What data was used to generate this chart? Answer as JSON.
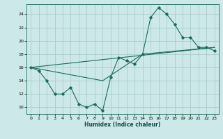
{
  "title": "",
  "xlabel": "Humidex (Indice chaleur)",
  "ylabel": "",
  "bg_color": "#cce8e8",
  "grid_color": "#aacccc",
  "line_color": "#1a6b5a",
  "xlim": [
    -0.5,
    23.5
  ],
  "ylim": [
    9,
    25.5
  ],
  "xticks": [
    0,
    1,
    2,
    3,
    4,
    5,
    6,
    7,
    8,
    9,
    10,
    11,
    12,
    13,
    14,
    15,
    16,
    17,
    18,
    19,
    20,
    21,
    22,
    23
  ],
  "yticks": [
    10,
    12,
    14,
    16,
    18,
    20,
    22,
    24
  ],
  "line1_x": [
    0,
    1,
    2,
    3,
    4,
    5,
    6,
    7,
    8,
    9,
    10,
    11,
    12,
    13,
    14,
    15,
    16,
    17,
    18,
    19,
    20,
    21,
    22,
    23
  ],
  "line1_y": [
    16.0,
    15.5,
    14.0,
    12.0,
    12.0,
    13.0,
    10.5,
    10.0,
    10.5,
    9.5,
    14.5,
    17.5,
    17.0,
    16.5,
    18.0,
    23.5,
    25.0,
    24.0,
    22.5,
    20.5,
    20.5,
    19.0,
    19.0,
    18.5
  ],
  "line2_x": [
    0,
    23
  ],
  "line2_y": [
    16.0,
    19.0
  ],
  "line3_x": [
    0,
    9,
    14,
    23
  ],
  "line3_y": [
    16.0,
    14.0,
    18.0,
    19.0
  ]
}
